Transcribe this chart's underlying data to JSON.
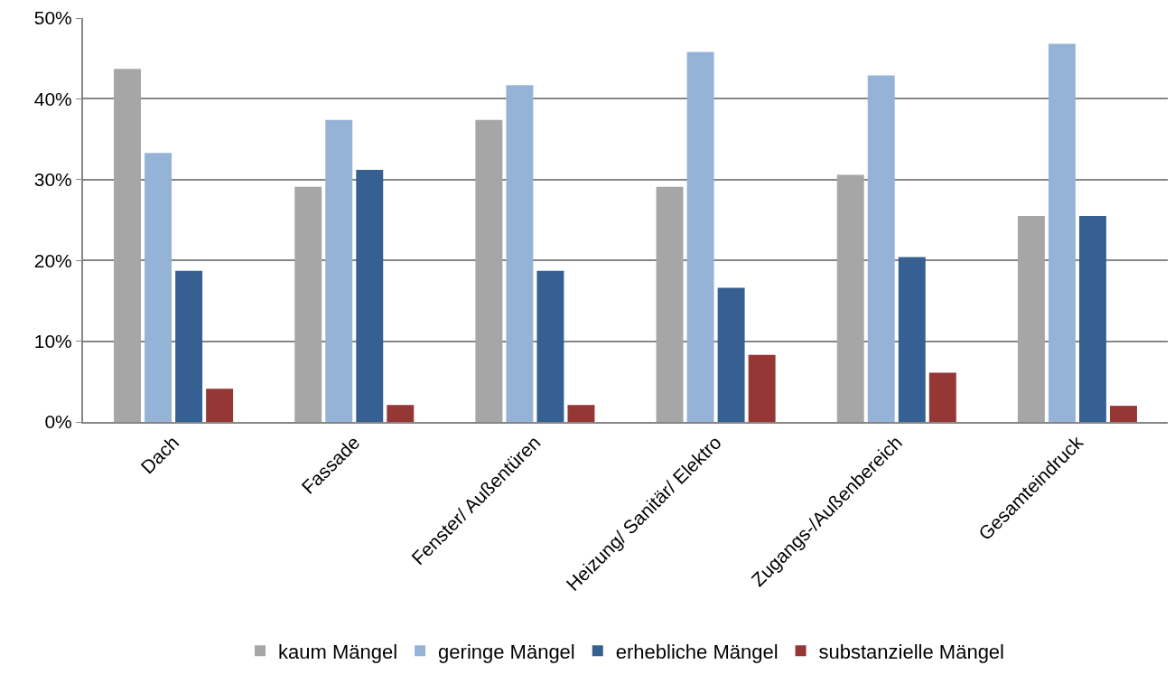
{
  "chart_data": {
    "type": "bar",
    "categories": [
      "Dach",
      "Fassade",
      "Fenster/ Außentüren",
      "Heizung/ Sanitär/ Elektro",
      "Zugangs-/Außenbereich",
      "Gesamteindruck"
    ],
    "series": [
      {
        "name": "kaum Mängel",
        "color": "#a6a6a6",
        "values": [
          43.7,
          29.1,
          37.4,
          29.1,
          30.6,
          25.5
        ]
      },
      {
        "name": "geringe Mängel",
        "color": "#95b3d7",
        "values": [
          33.3,
          37.4,
          41.7,
          45.8,
          42.9,
          46.8
        ]
      },
      {
        "name": "erhebliche Mängel",
        "color": "#366092",
        "values": [
          18.7,
          31.2,
          18.7,
          16.6,
          20.4,
          25.5
        ]
      },
      {
        "name": "substanzielle Mängel",
        "color": "#953735",
        "values": [
          4.1,
          2.1,
          2.1,
          8.3,
          6.1,
          2.0
        ]
      }
    ],
    "ylim": [
      0,
      50
    ],
    "yticks": [
      {
        "value": 0,
        "label": "0%"
      },
      {
        "value": 10,
        "label": "10%"
      },
      {
        "value": 20,
        "label": "20%"
      },
      {
        "value": 30,
        "label": "30%"
      },
      {
        "value": 40,
        "label": "40%"
      },
      {
        "value": 50,
        "label": "50%"
      }
    ],
    "grid": "y",
    "legend": "bottom"
  }
}
